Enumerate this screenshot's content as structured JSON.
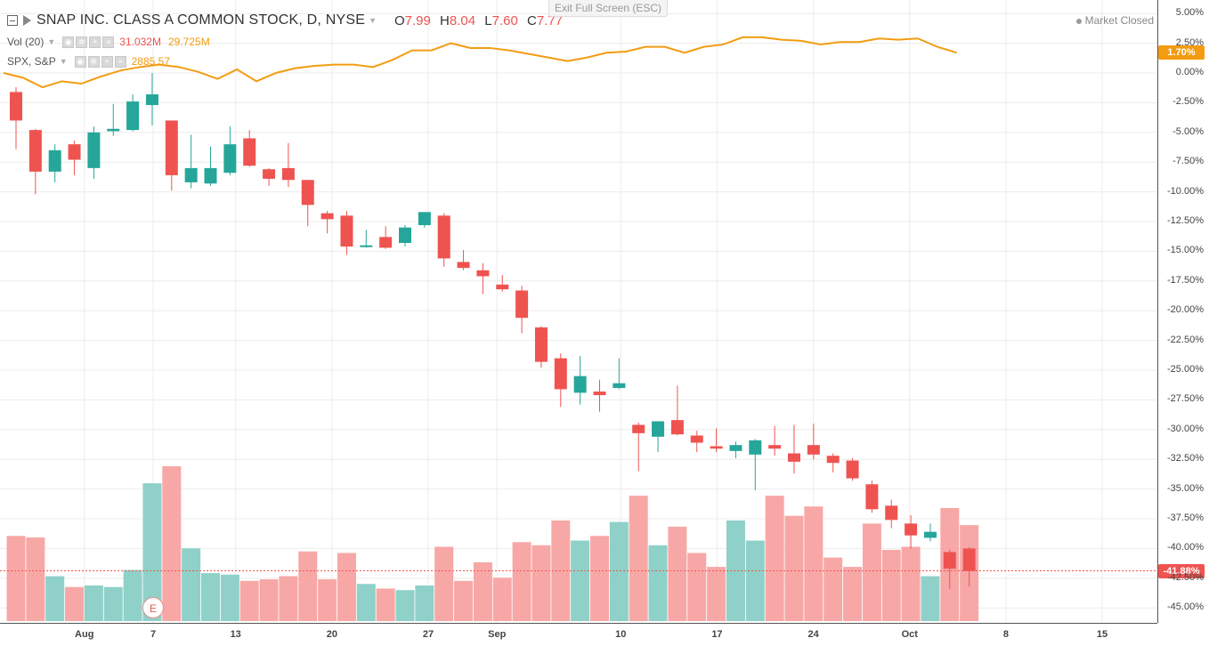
{
  "header": {
    "symbol_title": "SNAP INC. CLASS A COMMON STOCK, D, NYSE",
    "ohlc": {
      "o_label": "O",
      "o": "7.99",
      "h_label": "H",
      "h": "8.04",
      "l_label": "L",
      "l": "7.60",
      "c_label": "C",
      "c": "7.77"
    },
    "vol_label": "Vol (20)",
    "vol_value": "31.032M",
    "vol_ma": "29.725M",
    "compare_label": "SPX, S&P",
    "compare_value": "2885.57",
    "exit_fullscreen": "Exit Full Screen (ESC)",
    "market_status": "Market Closed"
  },
  "price_axis": {
    "labels": [
      "5.00%",
      "2.50%",
      "0.00%",
      "-2.50%",
      "-5.00%",
      "-7.50%",
      "-10.00%",
      "-12.50%",
      "-15.00%",
      "-17.50%",
      "-20.00%",
      "-22.50%",
      "-25.00%",
      "-27.50%",
      "-30.00%",
      "-32.50%",
      "-35.00%",
      "-37.50%",
      "-40.00%",
      "-42.50%",
      "-45.00%"
    ],
    "spx_tag": "1.70%",
    "snap_tag": "-41.88%"
  },
  "time_axis": {
    "labels": [
      {
        "text": "Aug",
        "day": 2
      },
      {
        "text": "7",
        "day": 7
      },
      {
        "text": "13",
        "day": 13
      },
      {
        "text": "20",
        "day": 20
      },
      {
        "text": "27",
        "day": 27
      },
      {
        "text": "Sep",
        "day": 32
      },
      {
        "text": "10",
        "day": 41
      },
      {
        "text": "17",
        "day": 48
      },
      {
        "text": "24",
        "day": 55
      },
      {
        "text": "Oct",
        "day": 62
      },
      {
        "text": "8",
        "day": 69
      },
      {
        "text": "15",
        "day": 76
      }
    ]
  },
  "earnings_marker": "E",
  "colors": {
    "up": "#26a69a",
    "down": "#ef5350",
    "up_vol": "#8fd1c8",
    "down_vol": "#f7a8a6",
    "spx": "#f39c12",
    "grid": "#ececec"
  },
  "chart_data": {
    "type": "candlestick",
    "y_unit": "percent change",
    "ylim": [
      -46.5,
      6.0
    ],
    "spx_last": 1.7,
    "candles": [
      {
        "o": -1.6,
        "h": -1.2,
        "l": -6.4,
        "c": -4.0
      },
      {
        "o": -4.8,
        "h": -4.7,
        "l": -10.2,
        "c": -8.3
      },
      {
        "o": -8.3,
        "h": -6.0,
        "l": -9.2,
        "c": -6.5
      },
      {
        "o": -6.0,
        "h": -5.7,
        "l": -8.6,
        "c": -7.3
      },
      {
        "o": -8.0,
        "h": -4.5,
        "l": -8.9,
        "c": -5.0
      },
      {
        "o": -4.9,
        "h": -2.6,
        "l": -5.3,
        "c": -4.7
      },
      {
        "o": -4.8,
        "h": -1.8,
        "l": -4.9,
        "c": -2.4
      },
      {
        "o": -2.7,
        "h": 0.0,
        "l": -4.4,
        "c": -1.8
      },
      {
        "o": -4.0,
        "h": -4.0,
        "l": -9.9,
        "c": -8.6
      },
      {
        "o": -9.2,
        "h": -5.2,
        "l": -9.7,
        "c": -8.0
      },
      {
        "o": -9.3,
        "h": -6.2,
        "l": -9.5,
        "c": -8.0
      },
      {
        "o": -8.4,
        "h": -4.5,
        "l": -8.6,
        "c": -6.0
      },
      {
        "o": -5.5,
        "h": -4.8,
        "l": -7.9,
        "c": -7.8
      },
      {
        "o": -8.1,
        "h": -8.0,
        "l": -9.5,
        "c": -8.9
      },
      {
        "o": -8.0,
        "h": -5.9,
        "l": -9.6,
        "c": -9.0
      },
      {
        "o": -9.0,
        "h": -9.0,
        "l": -12.9,
        "c": -11.1
      },
      {
        "o": -11.8,
        "h": -11.6,
        "l": -13.5,
        "c": -12.3
      },
      {
        "o": -12.0,
        "h": -11.6,
        "l": -15.3,
        "c": -14.6
      },
      {
        "o": -14.6,
        "h": -13.2,
        "l": -14.7,
        "c": -14.5
      },
      {
        "o": -13.8,
        "h": -12.9,
        "l": -14.8,
        "c": -14.7
      },
      {
        "o": -14.3,
        "h": -12.8,
        "l": -14.6,
        "c": -13.0
      },
      {
        "o": -12.8,
        "h": -11.8,
        "l": -13.0,
        "c": -11.7
      },
      {
        "o": -12.0,
        "h": -11.8,
        "l": -16.3,
        "c": -15.6
      },
      {
        "o": -15.9,
        "h": -14.9,
        "l": -16.6,
        "c": -16.4
      },
      {
        "o": -16.6,
        "h": -16.0,
        "l": -18.6,
        "c": -17.1
      },
      {
        "o": -17.8,
        "h": -17.0,
        "l": -18.4,
        "c": -18.2
      },
      {
        "o": -18.3,
        "h": -17.9,
        "l": -21.9,
        "c": -20.6
      },
      {
        "o": -21.4,
        "h": -21.3,
        "l": -24.8,
        "c": -24.3
      },
      {
        "o": -24.0,
        "h": -23.6,
        "l": -28.1,
        "c": -26.6
      },
      {
        "o": -26.9,
        "h": -23.8,
        "l": -27.9,
        "c": -25.5
      },
      {
        "o": -26.8,
        "h": -25.8,
        "l": -28.5,
        "c": -27.1
      },
      {
        "o": -26.5,
        "h": -24.0,
        "l": -26.6,
        "c": -26.1
      },
      {
        "o": -29.6,
        "h": -29.4,
        "l": -33.5,
        "c": -30.3
      },
      {
        "o": -30.6,
        "h": -29.8,
        "l": -31.9,
        "c": -29.3
      },
      {
        "o": -29.2,
        "h": -26.3,
        "l": -30.5,
        "c": -30.4
      },
      {
        "o": -30.5,
        "h": -30.1,
        "l": -31.9,
        "c": -31.1
      },
      {
        "o": -31.4,
        "h": -29.9,
        "l": -31.9,
        "c": -31.6
      },
      {
        "o": -31.8,
        "h": -31.0,
        "l": -32.4,
        "c": -31.3
      },
      {
        "o": -32.1,
        "h": -30.8,
        "l": -35.1,
        "c": -30.9
      },
      {
        "o": -31.3,
        "h": -29.7,
        "l": -32.2,
        "c": -31.6
      },
      {
        "o": -32.0,
        "h": -29.6,
        "l": -33.7,
        "c": -32.7
      },
      {
        "o": -31.3,
        "h": -29.5,
        "l": -32.5,
        "c": -32.1
      },
      {
        "o": -32.2,
        "h": -32.0,
        "l": -33.6,
        "c": -32.8
      },
      {
        "o": -32.6,
        "h": -32.4,
        "l": -34.3,
        "c": -34.1
      },
      {
        "o": -34.6,
        "h": -34.3,
        "l": -37.0,
        "c": -36.7
      },
      {
        "o": -36.4,
        "h": -35.9,
        "l": -38.3,
        "c": -37.6
      },
      {
        "o": -37.9,
        "h": -37.2,
        "l": -40.0,
        "c": -38.9
      },
      {
        "o": -39.1,
        "h": -37.9,
        "l": -39.4,
        "c": -38.6
      },
      {
        "o": -40.3,
        "h": -40.1,
        "l": -43.4,
        "c": -41.7
      },
      {
        "o": -40.0,
        "h": -39.9,
        "l": -43.2,
        "c": -41.9
      }
    ],
    "volume_relative": [
      0.55,
      0.54,
      0.29,
      0.22,
      0.23,
      0.22,
      0.33,
      0.89,
      1.0,
      0.47,
      0.31,
      0.3,
      0.26,
      0.27,
      0.29,
      0.45,
      0.27,
      0.44,
      0.24,
      0.21,
      0.2,
      0.23,
      0.48,
      0.26,
      0.38,
      0.28,
      0.51,
      0.49,
      0.65,
      0.52,
      0.55,
      0.64,
      0.81,
      0.49,
      0.61,
      0.44,
      0.35,
      0.65,
      0.52,
      0.81,
      0.68,
      0.74,
      0.41,
      0.35,
      0.63,
      0.46,
      0.48,
      0.29,
      0.73,
      0.62
    ],
    "spx_line": [
      0.0,
      -0.4,
      -1.2,
      -0.7,
      -0.9,
      -0.3,
      0.2,
      0.5,
      0.7,
      0.5,
      0.1,
      -0.5,
      0.3,
      -0.7,
      0.0,
      0.4,
      0.6,
      0.7,
      0.7,
      0.5,
      1.1,
      1.9,
      1.9,
      2.5,
      2.1,
      2.1,
      1.9,
      1.6,
      1.3,
      1.0,
      1.3,
      1.7,
      1.8,
      2.2,
      2.2,
      1.7,
      2.2,
      2.4,
      3.0,
      3.0,
      2.8,
      2.7,
      2.4,
      2.6,
      2.6,
      2.9,
      2.8,
      2.9,
      2.2,
      1.7
    ]
  }
}
